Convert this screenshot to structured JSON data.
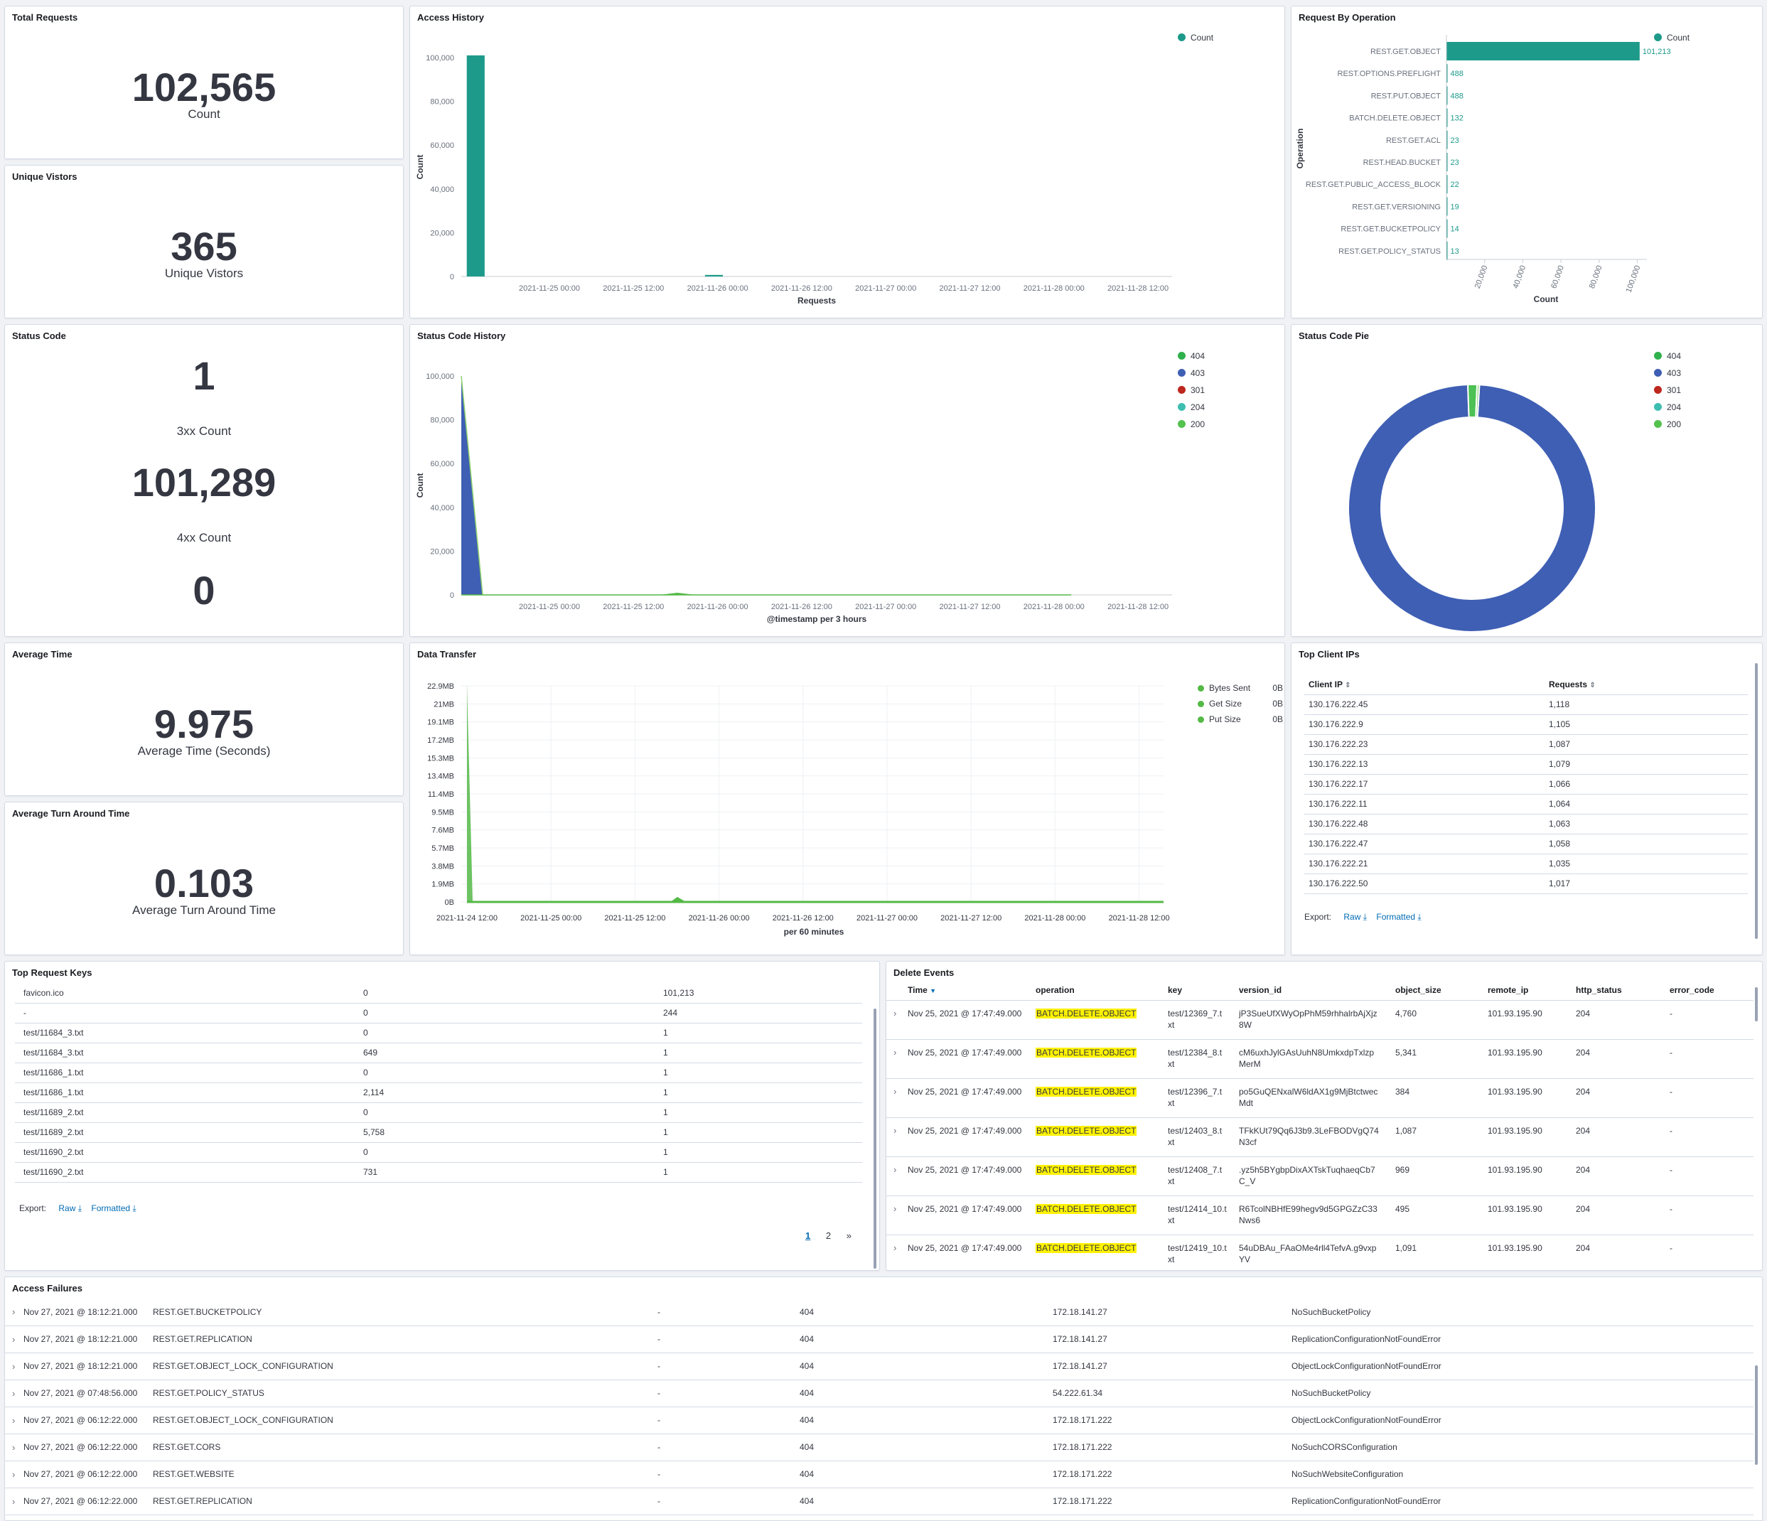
{
  "total_requests": {
    "title": "Total Requests",
    "value": "102,565",
    "label": "Count"
  },
  "unique_visitors": {
    "title": "Unique Vistors",
    "value": "365",
    "label": "Unique Vistors"
  },
  "status_code": {
    "title": "Status Code",
    "v1": "1",
    "l1": "3xx Count",
    "v2": "101,289",
    "l2": "4xx Count",
    "v3": "0"
  },
  "average_time": {
    "title": "Average Time",
    "value": "9.975",
    "label": "Average Time (Seconds)"
  },
  "average_turn": {
    "title": "Average Turn Around Time",
    "value": "0.103",
    "label": "Average Turn Around Time"
  },
  "access_history": {
    "title": "Access History",
    "chart_data": {
      "type": "bar",
      "xlabel": "Requests",
      "ylabel": "Count",
      "ylim": [
        0,
        100000
      ],
      "yticks": [
        "0",
        "20,000",
        "40,000",
        "60,000",
        "80,000",
        "100,000"
      ],
      "xticks": [
        "2021-11-25 00:00",
        "2021-11-25 12:00",
        "2021-11-26 00:00",
        "2021-11-26 12:00",
        "2021-11-27 00:00",
        "2021-11-27 12:00",
        "2021-11-28 00:00",
        "2021-11-28 12:00"
      ],
      "legend": [
        "Count"
      ],
      "bars": [
        {
          "x": "2021-11-24 12:00",
          "value": 101000
        },
        {
          "x": "2021-11-25 22:00",
          "value": 700
        }
      ]
    }
  },
  "request_by_operation": {
    "title": "Request By Operation",
    "chart_data": {
      "type": "bar",
      "orientation": "horizontal",
      "xlabel": "Count",
      "ylabel": "Operation",
      "xlim": [
        0,
        105000
      ],
      "xticks": [
        "20,000",
        "40,000",
        "60,000",
        "80,000",
        "100,000"
      ],
      "legend": [
        "Count"
      ],
      "categories": [
        "REST.GET.OBJECT",
        "REST.OPTIONS.PREFLIGHT",
        "REST.PUT.OBJECT",
        "BATCH.DELETE.OBJECT",
        "REST.GET.ACL",
        "REST.HEAD.BUCKET",
        "REST.GET.PUBLIC_ACCESS_BLOCK",
        "REST.GET.VERSIONING",
        "REST.GET.BUCKETPOLICY",
        "REST.GET.POLICY_STATUS"
      ],
      "values": [
        101213,
        488,
        488,
        132,
        23,
        23,
        22,
        19,
        14,
        13
      ],
      "labels": [
        "101,213",
        "488",
        "488",
        "132",
        "23",
        "23",
        "22",
        "19",
        "14",
        "13"
      ]
    }
  },
  "status_code_history": {
    "title": "Status Code History",
    "chart_data": {
      "type": "area",
      "xlabel": "@timestamp per 3 hours",
      "ylabel": "Count",
      "ylim": [
        0,
        100000
      ],
      "yticks": [
        "0",
        "20,000",
        "40,000",
        "60,000",
        "80,000",
        "100,000"
      ],
      "xticks": [
        "2021-11-25 00:00",
        "2021-11-25 12:00",
        "2021-11-26 00:00",
        "2021-11-26 12:00",
        "2021-11-27 00:00",
        "2021-11-27 12:00",
        "2021-11-28 00:00",
        "2021-11-28 12:00"
      ],
      "series": [
        {
          "name": "404",
          "color": "#54b399"
        },
        {
          "name": "403",
          "color": "#3f62b3"
        },
        {
          "name": "301",
          "color": "#bd271e"
        },
        {
          "name": "204",
          "color": "#3ebeb0"
        },
        {
          "name": "200",
          "color": "#54b946"
        }
      ]
    }
  },
  "status_code_pie": {
    "title": "Status Code Pie",
    "chart_data": {
      "type": "pie",
      "donut": true,
      "slices": [
        {
          "name": "403",
          "value": 98.5,
          "color": "#3f5fb4"
        },
        {
          "name": "404",
          "value": 1.2,
          "color": "#4cc154"
        },
        {
          "name": "200",
          "value": 0.3,
          "color": "#7ed36b"
        }
      ],
      "legend": [
        {
          "name": "404",
          "color": "#30b14e"
        },
        {
          "name": "403",
          "color": "#3f5fb4"
        },
        {
          "name": "301",
          "color": "#bd271e"
        },
        {
          "name": "204",
          "color": "#3ebeb0"
        },
        {
          "name": "200",
          "color": "#54c24f"
        }
      ]
    }
  },
  "data_transfer": {
    "title": "Data Transfer",
    "chart_data": {
      "type": "area",
      "xlabel": "per 60 minutes",
      "yticks": [
        "0B",
        "1.9MB",
        "3.8MB",
        "5.7MB",
        "7.6MB",
        "9.5MB",
        "11.4MB",
        "13.4MB",
        "15.3MB",
        "17.2MB",
        "19.1MB",
        "21MB",
        "22.9MB"
      ],
      "xticks": [
        "2021-11-24 12:00",
        "2021-11-25 00:00",
        "2021-11-25 12:00",
        "2021-11-26 00:00",
        "2021-11-26 12:00",
        "2021-11-27 00:00",
        "2021-11-27 12:00",
        "2021-11-28 00:00",
        "2021-11-28 12:00"
      ],
      "series": [
        {
          "name": "Bytes Sent",
          "value": "0B",
          "color": "#54b946"
        },
        {
          "name": "Get Size",
          "value": "0B",
          "color": "#54b946"
        },
        {
          "name": "Put Size",
          "value": "0B",
          "color": "#54b946"
        }
      ]
    }
  },
  "top_client_ips": {
    "title": "Top Client IPs",
    "headers": [
      "Client IP",
      "Requests"
    ],
    "rows": [
      [
        "130.176.222.45",
        "1,118"
      ],
      [
        "130.176.222.9",
        "1,105"
      ],
      [
        "130.176.222.23",
        "1,087"
      ],
      [
        "130.176.222.13",
        "1,079"
      ],
      [
        "130.176.222.17",
        "1,066"
      ],
      [
        "130.176.222.11",
        "1,064"
      ],
      [
        "130.176.222.48",
        "1,063"
      ],
      [
        "130.176.222.47",
        "1,058"
      ],
      [
        "130.176.222.21",
        "1,035"
      ],
      [
        "130.176.222.50",
        "1,017"
      ]
    ],
    "export_label": "Export:",
    "raw_label": "Raw",
    "formatted_label": "Formatted"
  },
  "top_request_keys": {
    "title": "Top Request Keys",
    "rows": [
      [
        "favicon.ico",
        "0",
        "101,213"
      ],
      [
        "-",
        "0",
        "244"
      ],
      [
        "test/11684_3.txt",
        "0",
        "1"
      ],
      [
        "test/11684_3.txt",
        "649",
        "1"
      ],
      [
        "test/11686_1.txt",
        "0",
        "1"
      ],
      [
        "test/11686_1.txt",
        "2,114",
        "1"
      ],
      [
        "test/11689_2.txt",
        "0",
        "1"
      ],
      [
        "test/11689_2.txt",
        "5,758",
        "1"
      ],
      [
        "test/11690_2.txt",
        "0",
        "1"
      ],
      [
        "test/11690_2.txt",
        "731",
        "1"
      ]
    ],
    "export_label": "Export:",
    "raw_label": "Raw",
    "formatted_label": "Formatted",
    "pages": [
      "1",
      "2"
    ],
    "next": "»"
  },
  "delete_events": {
    "title": "Delete Events",
    "headers": [
      "Time",
      "operation",
      "key",
      "version_id",
      "object_size",
      "remote_ip",
      "http_status",
      "error_code"
    ],
    "rows": [
      [
        "Nov 25, 2021 @ 17:47:49.000",
        "BATCH.DELETE.OBJECT",
        "test/12369_7.t",
        "xt",
        "jP3SueUfXWyOpPhM59rhhalrbAjXjz",
        "8W",
        "4,760",
        "101.93.195.90",
        "204",
        "-"
      ],
      [
        "Nov 25, 2021 @ 17:47:49.000",
        "BATCH.DELETE.OBJECT",
        "test/12384_8.t",
        "xt",
        "cM6uxhJylGAsUuhN8UmkxdpTxlzp",
        "MerM",
        "5,341",
        "101.93.195.90",
        "204",
        "-"
      ],
      [
        "Nov 25, 2021 @ 17:47:49.000",
        "BATCH.DELETE.OBJECT",
        "test/12396_7.t",
        "xt",
        "po5GuQENxalW6ldAX1g9MjBtctwec",
        "Mdt",
        "384",
        "101.93.195.90",
        "204",
        "-"
      ],
      [
        "Nov 25, 2021 @ 17:47:49.000",
        "BATCH.DELETE.OBJECT",
        "test/12403_8.t",
        "xt",
        "TFkKUt79Qq6J3b9.3LeFBODVgQ74",
        "N3cf",
        "1,087",
        "101.93.195.90",
        "204",
        "-"
      ],
      [
        "Nov 25, 2021 @ 17:47:49.000",
        "BATCH.DELETE.OBJECT",
        "test/12408_7.t",
        "xt",
        ".yz5h5BYgbpDixAXTskTuqhaeqCb7",
        "C_V",
        "969",
        "101.93.195.90",
        "204",
        "-"
      ],
      [
        "Nov 25, 2021 @ 17:47:49.000",
        "BATCH.DELETE.OBJECT",
        "test/12414_10.t",
        "xt",
        "R6TcolNBHfE99hegv9d5GPGZzC33",
        "Nws6",
        "495",
        "101.93.195.90",
        "204",
        "-"
      ],
      [
        "Nov 25, 2021 @ 17:47:49.000",
        "BATCH.DELETE.OBJECT",
        "test/12419_10.t",
        "xt",
        "54uDBAu_FAaOMe4rll4TefvA.g9vxp",
        "YV",
        "1,091",
        "101.93.195.90",
        "204",
        "-"
      ]
    ]
  },
  "access_failures": {
    "title": "Access Failures",
    "rows": [
      [
        "Nov 27, 2021 @ 18:12:21.000",
        "REST.GET.BUCKETPOLICY",
        "-",
        "404",
        "172.18.141.27",
        "NoSuchBucketPolicy"
      ],
      [
        "Nov 27, 2021 @ 18:12:21.000",
        "REST.GET.REPLICATION",
        "-",
        "404",
        "172.18.141.27",
        "ReplicationConfigurationNotFoundError"
      ],
      [
        "Nov 27, 2021 @ 18:12:21.000",
        "REST.GET.OBJECT_LOCK_CONFIGURATION",
        "-",
        "404",
        "172.18.141.27",
        "ObjectLockConfigurationNotFoundError"
      ],
      [
        "Nov 27, 2021 @ 07:48:56.000",
        "REST.GET.POLICY_STATUS",
        "-",
        "404",
        "54.222.61.34",
        "NoSuchBucketPolicy"
      ],
      [
        "Nov 27, 2021 @ 06:12:22.000",
        "REST.GET.OBJECT_LOCK_CONFIGURATION",
        "-",
        "404",
        "172.18.171.222",
        "ObjectLockConfigurationNotFoundError"
      ],
      [
        "Nov 27, 2021 @ 06:12:22.000",
        "REST.GET.CORS",
        "-",
        "404",
        "172.18.171.222",
        "NoSuchCORSConfiguration"
      ],
      [
        "Nov 27, 2021 @ 06:12:22.000",
        "REST.GET.WEBSITE",
        "-",
        "404",
        "172.18.171.222",
        "NoSuchWebsiteConfiguration"
      ],
      [
        "Nov 27, 2021 @ 06:12:22.000",
        "REST.GET.REPLICATION",
        "-",
        "404",
        "172.18.171.222",
        "ReplicationConfigurationNotFoundError"
      ]
    ]
  },
  "colors": {
    "teal": "#1d9a8a",
    "blue": "#3f5fb4",
    "green": "#54b946",
    "link": "#006bb4",
    "highlight": "#fff200"
  }
}
